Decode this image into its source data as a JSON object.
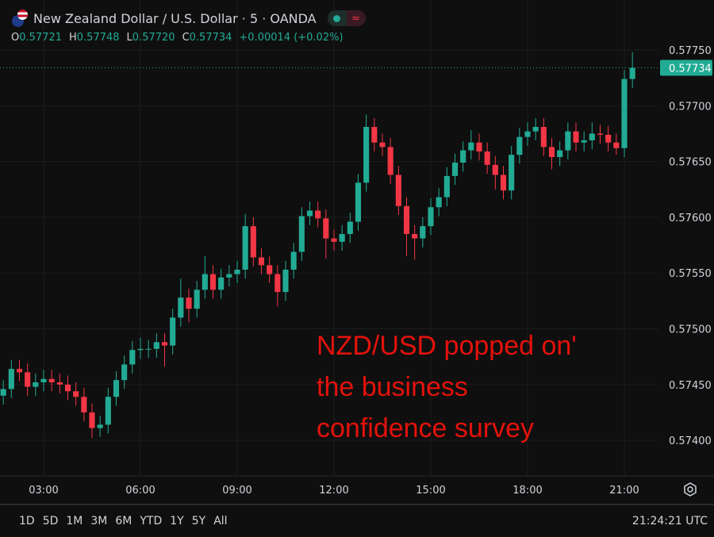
{
  "header": {
    "title": "New Zealand Dollar / U.S. Dollar · 5 · OANDA",
    "ohlc": {
      "o_label": "O",
      "o": "0.57721",
      "h_label": "H",
      "h": "0.57748",
      "l_label": "L",
      "l": "0.57720",
      "c_label": "C",
      "c": "0.57734",
      "change": "+0.00014 (+0.02%)"
    },
    "icons": [
      "nzd-usd-flag-icon",
      "market-open-dot-icon",
      "wave-icon"
    ]
  },
  "annotation": [
    "NZD/USD popped on'",
    "the business",
    "confidence survey"
  ],
  "range_buttons": [
    "1D",
    "5D",
    "1M",
    "3M",
    "6M",
    "YTD",
    "1Y",
    "5Y",
    "All"
  ],
  "clock": "21:24:21 UTC",
  "colors": {
    "background": "#0f0f0f",
    "up": "#22ab94",
    "down": "#f23645",
    "annotation": "#e3120b",
    "last_price": "#22ab94"
  },
  "chart_data": {
    "type": "candlestick",
    "title": "New Zealand Dollar / U.S. Dollar · 5 · OANDA",
    "ylim": [
      0.5738,
      0.57765
    ],
    "y_ticks": [
      "0.57750",
      "0.57700",
      "0.57650",
      "0.57600",
      "0.57550",
      "0.57500",
      "0.57450",
      "0.57400"
    ],
    "x_ticks": [
      "03:00",
      "06:00",
      "09:00",
      "12:00",
      "15:00",
      "18:00",
      "21:00"
    ],
    "last_price": "0.57734",
    "grid": true,
    "x_start": "01:45",
    "candle_step_minutes": 15,
    "candles": [
      [
        0.5744,
        0.57454,
        0.57432,
        0.57446
      ],
      [
        0.57446,
        0.57472,
        0.57438,
        0.57464
      ],
      [
        0.57464,
        0.57472,
        0.57453,
        0.57461
      ],
      [
        0.57461,
        0.57469,
        0.5744,
        0.57448
      ],
      [
        0.57448,
        0.5746,
        0.5744,
        0.57452
      ],
      [
        0.57452,
        0.57463,
        0.57444,
        0.57455
      ],
      [
        0.57455,
        0.57463,
        0.57444,
        0.57452
      ],
      [
        0.57452,
        0.5746,
        0.57442,
        0.5745
      ],
      [
        0.5745,
        0.57458,
        0.57436,
        0.57444
      ],
      [
        0.57444,
        0.57452,
        0.57431,
        0.57439
      ],
      [
        0.57439,
        0.57447,
        0.57417,
        0.57425
      ],
      [
        0.57425,
        0.57433,
        0.57402,
        0.57411
      ],
      [
        0.57411,
        0.57422,
        0.57403,
        0.57414
      ],
      [
        0.57414,
        0.57447,
        0.57406,
        0.57439
      ],
      [
        0.57439,
        0.57462,
        0.57431,
        0.57454
      ],
      [
        0.57454,
        0.57476,
        0.57446,
        0.57468
      ],
      [
        0.57468,
        0.57489,
        0.5746,
        0.57481
      ],
      [
        0.57481,
        0.57492,
        0.57473,
        0.57482
      ],
      [
        0.57482,
        0.5749,
        0.57474,
        0.57482
      ],
      [
        0.57482,
        0.57496,
        0.57474,
        0.57488
      ],
      [
        0.57488,
        0.57496,
        0.57466,
        0.57485
      ],
      [
        0.57485,
        0.57518,
        0.57477,
        0.5751
      ],
      [
        0.5751,
        0.57545,
        0.57502,
        0.57528
      ],
      [
        0.57528,
        0.57536,
        0.57506,
        0.57518
      ],
      [
        0.57518,
        0.57543,
        0.5751,
        0.57535
      ],
      [
        0.57535,
        0.57565,
        0.57527,
        0.57549
      ],
      [
        0.57549,
        0.57557,
        0.57527,
        0.57535
      ],
      [
        0.57535,
        0.57554,
        0.57527,
        0.57546
      ],
      [
        0.57546,
        0.57557,
        0.57538,
        0.57549
      ],
      [
        0.57549,
        0.57561,
        0.57541,
        0.57553
      ],
      [
        0.57553,
        0.57603,
        0.57545,
        0.57592
      ],
      [
        0.57592,
        0.576,
        0.57556,
        0.57564
      ],
      [
        0.57564,
        0.57572,
        0.57549,
        0.57557
      ],
      [
        0.57557,
        0.57565,
        0.57541,
        0.57549
      ],
      [
        0.57549,
        0.57557,
        0.5752,
        0.57533
      ],
      [
        0.57533,
        0.57561,
        0.57525,
        0.57553
      ],
      [
        0.57553,
        0.57577,
        0.57545,
        0.57569
      ],
      [
        0.57569,
        0.57609,
        0.57561,
        0.57601
      ],
      [
        0.57601,
        0.57614,
        0.57593,
        0.57606
      ],
      [
        0.57606,
        0.57614,
        0.57591,
        0.57599
      ],
      [
        0.57599,
        0.57607,
        0.57563,
        0.57581
      ],
      [
        0.57581,
        0.57589,
        0.5757,
        0.57578
      ],
      [
        0.57578,
        0.57593,
        0.5757,
        0.57585
      ],
      [
        0.57585,
        0.57604,
        0.57577,
        0.57596
      ],
      [
        0.57596,
        0.57639,
        0.57588,
        0.57631
      ],
      [
        0.57631,
        0.57692,
        0.57623,
        0.57681
      ],
      [
        0.57681,
        0.57689,
        0.57659,
        0.57667
      ],
      [
        0.57667,
        0.57675,
        0.57655,
        0.57663
      ],
      [
        0.57663,
        0.57671,
        0.5763,
        0.57638
      ],
      [
        0.57638,
        0.57646,
        0.57602,
        0.5761
      ],
      [
        0.5761,
        0.57618,
        0.57565,
        0.57585
      ],
      [
        0.57585,
        0.57593,
        0.57562,
        0.57581
      ],
      [
        0.57581,
        0.576,
        0.57573,
        0.57592
      ],
      [
        0.57592,
        0.57617,
        0.57584,
        0.57609
      ],
      [
        0.57609,
        0.57626,
        0.57601,
        0.57618
      ],
      [
        0.57618,
        0.57645,
        0.5761,
        0.57637
      ],
      [
        0.57637,
        0.57657,
        0.57629,
        0.57649
      ],
      [
        0.57649,
        0.57668,
        0.57641,
        0.5766
      ],
      [
        0.5766,
        0.57678,
        0.57652,
        0.57667
      ],
      [
        0.57667,
        0.57675,
        0.57651,
        0.57659
      ],
      [
        0.57659,
        0.57667,
        0.57639,
        0.57647
      ],
      [
        0.57647,
        0.57655,
        0.57625,
        0.57638
      ],
      [
        0.57638,
        0.57646,
        0.57616,
        0.57624
      ],
      [
        0.57624,
        0.57664,
        0.57616,
        0.57656
      ],
      [
        0.57656,
        0.5768,
        0.57648,
        0.57672
      ],
      [
        0.57672,
        0.57685,
        0.57664,
        0.57677
      ],
      [
        0.57677,
        0.57689,
        0.57669,
        0.57681
      ],
      [
        0.57681,
        0.57689,
        0.57655,
        0.57663
      ],
      [
        0.57663,
        0.57671,
        0.57643,
        0.57654
      ],
      [
        0.57654,
        0.57668,
        0.57646,
        0.5766
      ],
      [
        0.5766,
        0.57685,
        0.57652,
        0.57677
      ],
      [
        0.57677,
        0.57685,
        0.57659,
        0.57667
      ],
      [
        0.57667,
        0.57677,
        0.57659,
        0.57669
      ],
      [
        0.57669,
        0.57685,
        0.57661,
        0.57675
      ],
      [
        0.57675,
        0.57683,
        0.57666,
        0.57674
      ],
      [
        0.57674,
        0.57682,
        0.57659,
        0.57667
      ],
      [
        0.57667,
        0.57675,
        0.57656,
        0.57662
      ],
      [
        0.57662,
        0.57732,
        0.57654,
        0.57724
      ],
      [
        0.57724,
        0.57748,
        0.57716,
        0.57734
      ]
    ]
  }
}
